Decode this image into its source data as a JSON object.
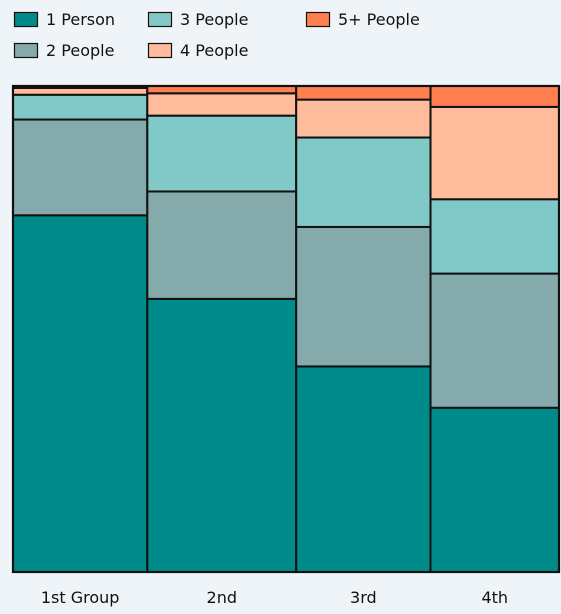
{
  "chart_data": {
    "type": "bar",
    "stacked": true,
    "normalized": true,
    "variable_width": true,
    "categories": [
      "1st Group",
      "2nd",
      "3rd",
      "4th"
    ],
    "column_widths": [
      0.2396,
      0.2656,
      0.2396,
      0.2292
    ],
    "series": [
      {
        "name": "1 Person",
        "color": "#008b8b",
        "values": [
          73.4,
          56.2,
          42.3,
          33.8
        ]
      },
      {
        "name": "2 People",
        "color": "#84aaab",
        "values": [
          19.7,
          22.1,
          28.7,
          27.6
        ]
      },
      {
        "name": "3 People",
        "color": "#80c9c6",
        "values": [
          5.1,
          15.6,
          18.4,
          15.3
        ]
      },
      {
        "name": "4 People",
        "color": "#ffbc9c",
        "values": [
          1.4,
          4.6,
          7.8,
          19.0
        ]
      },
      {
        "name": "5+ People",
        "color": "#ff7f50",
        "values": [
          0.4,
          1.5,
          2.8,
          4.3
        ]
      }
    ],
    "legend_position": "top-left",
    "ylim": [
      0,
      100
    ],
    "grid": false
  }
}
